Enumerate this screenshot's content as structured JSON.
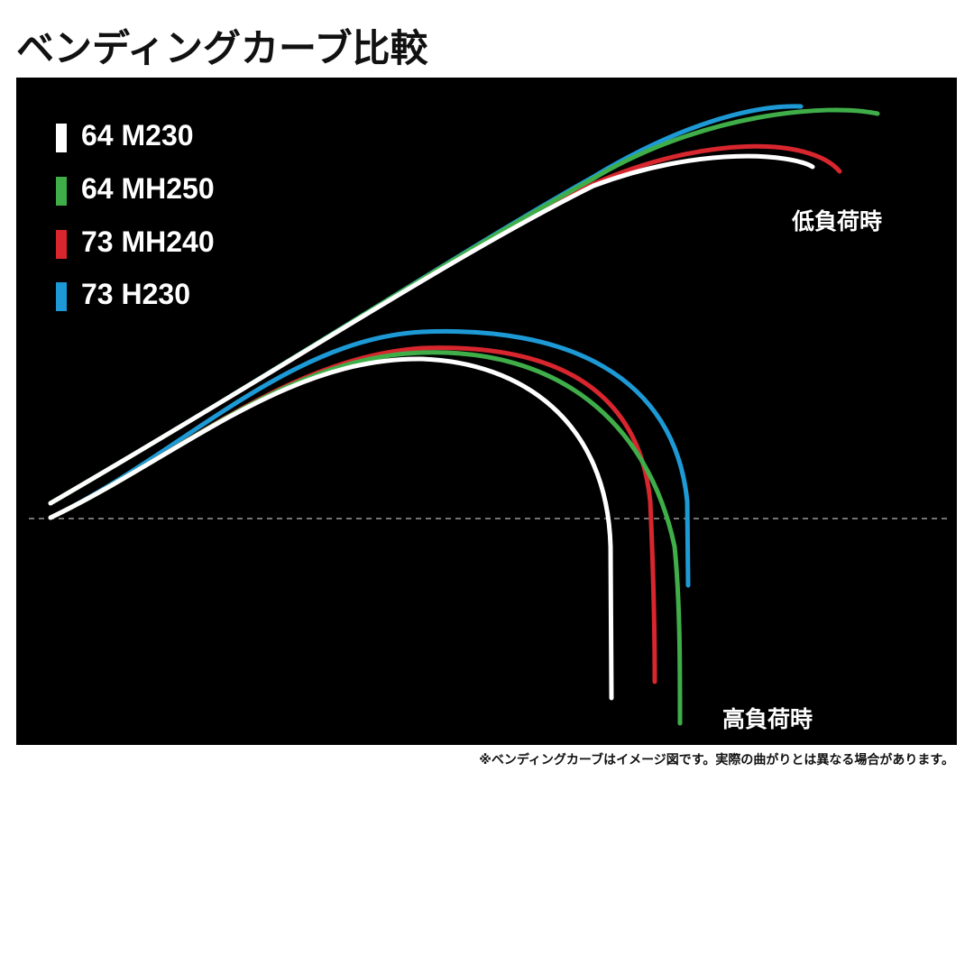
{
  "title": "ベンディングカーブ比較",
  "note": "※ベンディングカーブはイメージ図です。実際の曲がりとは異なる場合があります。",
  "chart_data": {
    "type": "line",
    "title": "ベンディングカーブ比較",
    "legend": "top-left",
    "grid": false,
    "series": [
      {
        "name": "64 M230",
        "color": "#ffffff"
      },
      {
        "name": "64 MH250",
        "color": "#3fae49"
      },
      {
        "name": "73 MH240",
        "color": "#d7262d"
      },
      {
        "name": "73 H230",
        "color": "#1d9ad6"
      }
    ],
    "load_states": [
      {
        "label": "低負荷時"
      },
      {
        "label": "高負荷時"
      }
    ]
  }
}
